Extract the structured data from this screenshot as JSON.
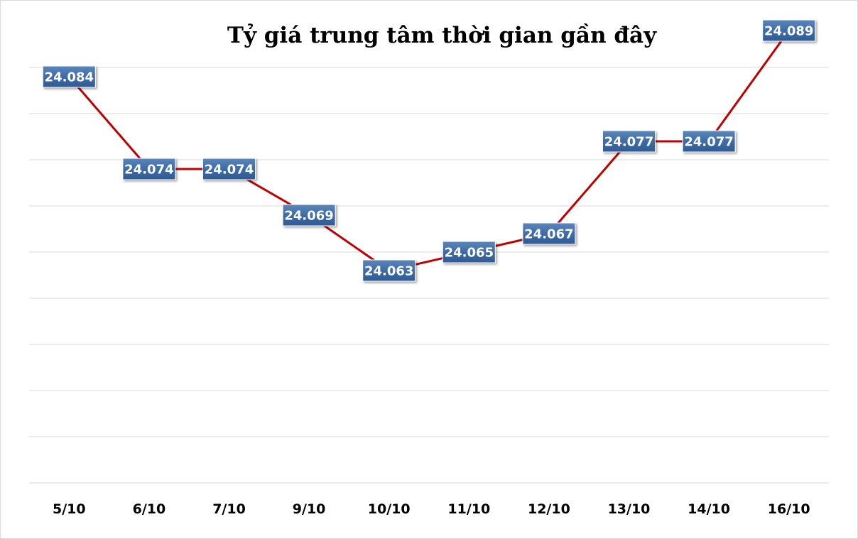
{
  "chart_data": {
    "type": "line",
    "title": "Tỷ giá trung tâm thời gian gần đây",
    "xlabel": "",
    "ylabel": "",
    "categories": [
      "5/10",
      "6/10",
      "7/10",
      "9/10",
      "10/10",
      "11/10",
      "12/10",
      "13/10",
      "14/10",
      "16/10"
    ],
    "series": [
      {
        "values": [
          24084,
          24074,
          24074,
          24069,
          24063,
          24065,
          24067,
          24077,
          24077,
          24089
        ],
        "labels": [
          "24.084",
          "24.074",
          "24.074",
          "24.069",
          "24.063",
          "24.065",
          "24.067",
          "24.077",
          "24.077",
          "24.089"
        ],
        "color": "#c00000"
      }
    ],
    "ylim": [
      24040,
      24085
    ],
    "grid": true,
    "y_axis_labels_shown": false,
    "legend": "none",
    "label_box_color": "#3d6aa3",
    "gridline_color": "#d9d9d9"
  }
}
